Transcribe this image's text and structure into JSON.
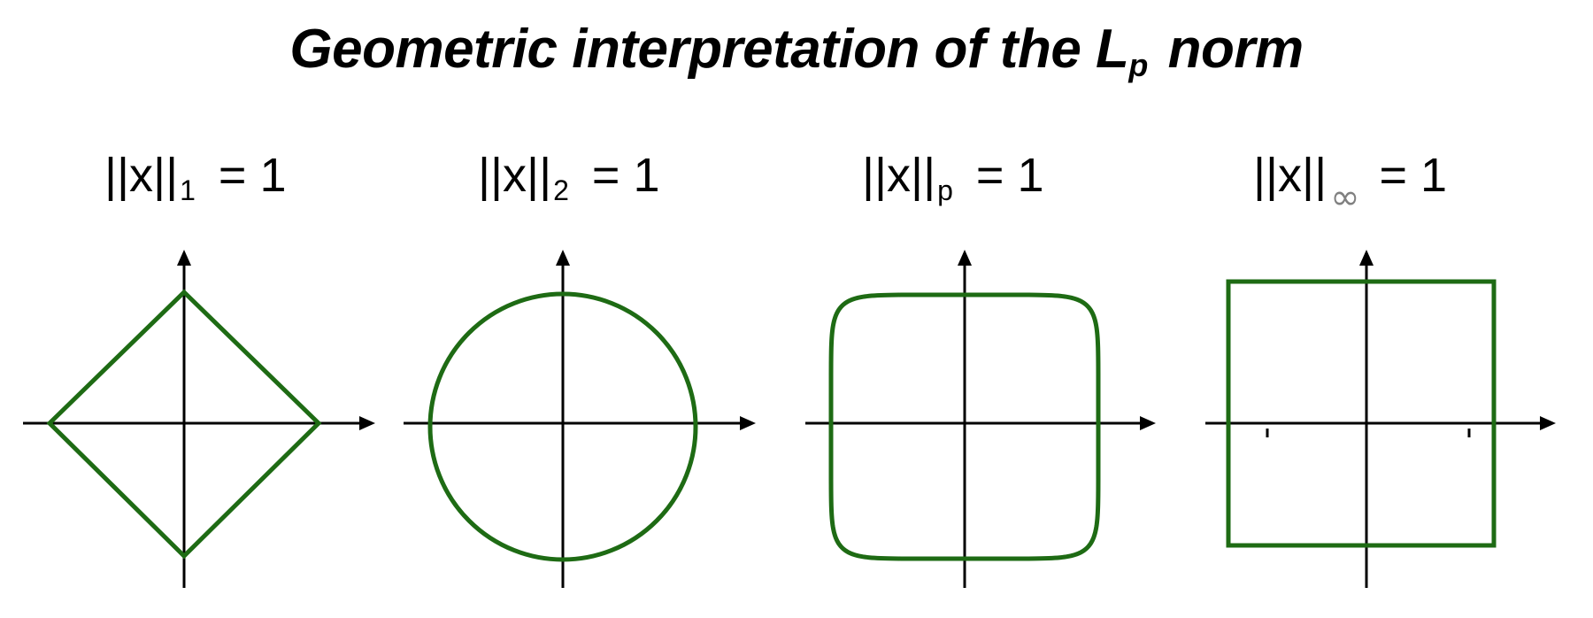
{
  "title": {
    "prefix": "Geometric interpretation of the L",
    "subscript": "p",
    "suffix": " norm"
  },
  "colors": {
    "shape_stroke": "#1e6b14",
    "axis": "#000000",
    "infinity_subscript": "#808080"
  },
  "panels": [
    {
      "id": "l1",
      "label_main": "||x||",
      "label_sub": "1",
      "label_rhs": "= 1",
      "shape": "diamond"
    },
    {
      "id": "l2",
      "label_main": "||x||",
      "label_sub": "2",
      "label_rhs": "= 1",
      "shape": "circle"
    },
    {
      "id": "lp",
      "label_main": "||x||",
      "label_sub": "p",
      "label_rhs": "= 1",
      "shape": "superellipse"
    },
    {
      "id": "linf",
      "label_main": "||x||",
      "label_sub": "∞",
      "label_rhs": "= 1",
      "shape": "square"
    }
  ]
}
